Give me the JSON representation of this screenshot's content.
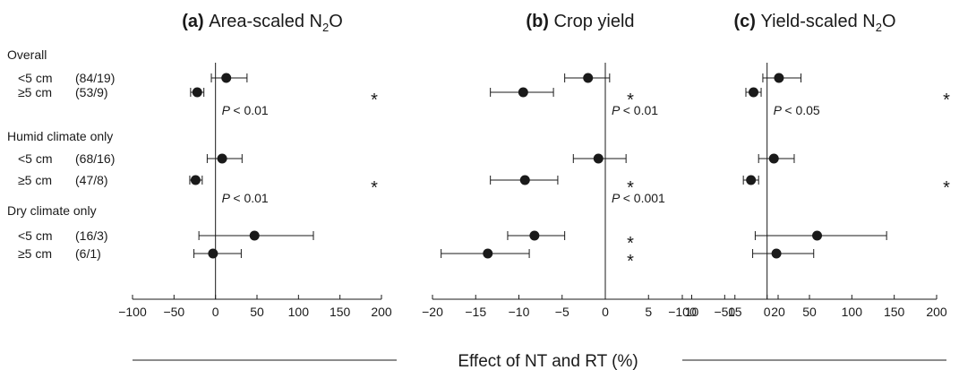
{
  "chart_data": {
    "type": "forest",
    "xlabel": "Effect of NT and RT (%)",
    "groups": [
      {
        "label": "Overall",
        "rows": [
          {
            "label": "<5 cm",
            "n": "(84/19)"
          },
          {
            "label": "≥5 cm",
            "n": "(53/9)"
          }
        ]
      },
      {
        "label": "Humid climate only",
        "rows": [
          {
            "label": "<5 cm",
            "n": "(68/16)"
          },
          {
            "label": "≥5 cm",
            "n": "(47/8)"
          }
        ]
      },
      {
        "label": "Dry climate only",
        "rows": [
          {
            "label": "<5 cm",
            "n": "(16/3)"
          },
          {
            "label": "≥5 cm",
            "n": "(6/1)"
          }
        ]
      }
    ],
    "panels": [
      {
        "letter": "(a)",
        "title": "Area-scaled N",
        "title_sub": "2",
        "title_suffix": "O",
        "xlim": [
          -100,
          200
        ],
        "ticks": [
          "−100",
          "−50",
          "0",
          "50",
          "100",
          "150",
          "200"
        ],
        "tick_values": [
          -100,
          -50,
          0,
          50,
          100,
          150,
          200
        ],
        "points": [
          {
            "mean": 13,
            "low": -5,
            "high": 38
          },
          {
            "mean": -22,
            "low": -30,
            "high": -14
          },
          {
            "mean": 8,
            "low": -10,
            "high": 32
          },
          {
            "mean": -24,
            "low": -31,
            "high": -16
          },
          {
            "mean": 47,
            "low": -20,
            "high": 118
          },
          {
            "mean": -3,
            "low": -26,
            "high": 31
          }
        ],
        "pvalues": [
          {
            "text": "< 0.01",
            "after_row": 1
          },
          {
            "text": "< 0.01",
            "after_row": 3
          }
        ],
        "stars": [
          1,
          3
        ]
      },
      {
        "letter": "(b)",
        "title": "Crop yield",
        "title_sub": "",
        "title_suffix": "",
        "xlim": [
          -20,
          20
        ],
        "ticks": [
          "−20",
          "−15",
          "−10",
          "−5",
          "0",
          "5",
          "10",
          "15",
          "20"
        ],
        "tick_values": [
          -20,
          -15,
          -10,
          -5,
          0,
          5,
          10,
          15,
          20
        ],
        "points": [
          {
            "mean": -2,
            "low": -4.7,
            "high": 0.5
          },
          {
            "mean": -9.5,
            "low": -13.3,
            "high": -6
          },
          {
            "mean": -0.8,
            "low": -3.7,
            "high": 2.4
          },
          {
            "mean": -9.3,
            "low": -13.3,
            "high": -5.5
          },
          {
            "mean": -8.2,
            "low": -11.3,
            "high": -4.7
          },
          {
            "mean": -13.6,
            "low": -19,
            "high": -8.8
          }
        ],
        "pvalues": [
          {
            "text": "< 0.01",
            "after_row": 1
          },
          {
            "text": "< 0.001",
            "after_row": 3
          }
        ],
        "stars": [
          1,
          3,
          4,
          5
        ]
      },
      {
        "letter": "(c)",
        "title": "Yield-scaled N",
        "title_sub": "2",
        "title_suffix": "O",
        "xlim": [
          -100,
          200
        ],
        "ticks": [
          "−100",
          "−50",
          "0",
          "50",
          "100",
          "150",
          "200"
        ],
        "tick_values": [
          -100,
          -50,
          0,
          50,
          100,
          150,
          200
        ],
        "points": [
          {
            "mean": 14,
            "low": -5,
            "high": 40
          },
          {
            "mean": -16,
            "low": -25,
            "high": -7
          },
          {
            "mean": 8,
            "low": -10,
            "high": 32
          },
          {
            "mean": -19,
            "low": -28,
            "high": -10
          },
          {
            "mean": 59,
            "low": -14,
            "high": 141
          },
          {
            "mean": 11,
            "low": -17,
            "high": 55
          }
        ],
        "pvalues": [
          {
            "text": "< 0.05",
            "after_row": 1
          }
        ],
        "stars": [
          1,
          3
        ]
      }
    ]
  }
}
